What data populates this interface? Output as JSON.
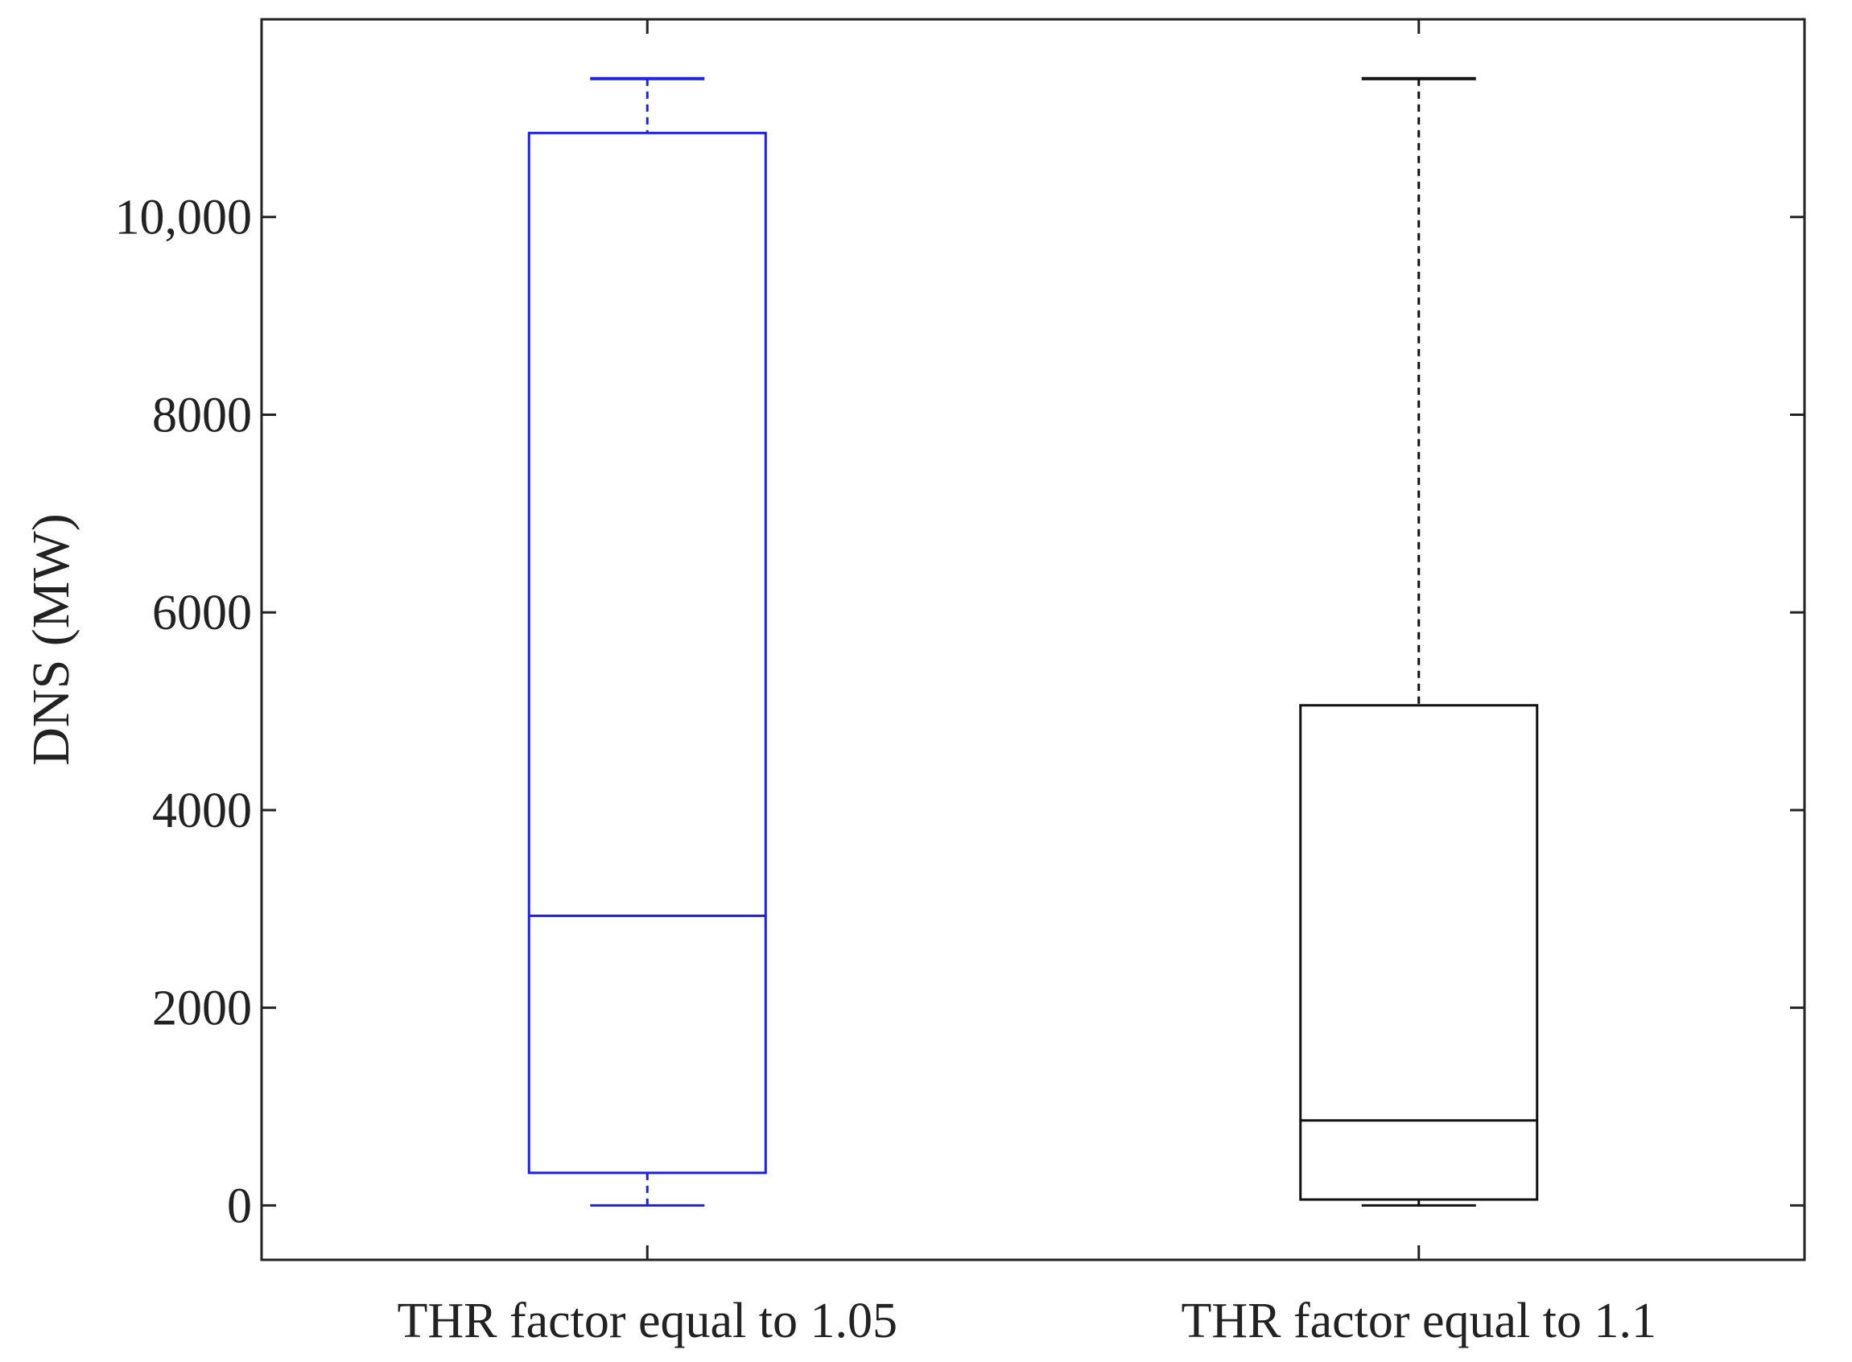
{
  "chart_data": {
    "type": "box",
    "ylabel": "DNS (MW)",
    "ylim": [
      -550,
      12000
    ],
    "yticks": [
      0,
      2000,
      4000,
      6000,
      8000,
      10000
    ],
    "ytick_labels": [
      "0",
      "2000",
      "4000",
      "6000",
      "8000",
      "10,000"
    ],
    "categories": [
      "THR factor equal to 1.05",
      "THR factor equal to 1.1"
    ],
    "boxes": [
      {
        "category": "THR factor equal to 1.05",
        "min": 0,
        "q1": 330,
        "median": 2930,
        "q3": 10850,
        "max": 11400,
        "color": "#1f1fe6"
      },
      {
        "category": "THR factor equal to 1.1",
        "min": 0,
        "q1": 60,
        "median": 860,
        "q3": 5060,
        "max": 11400,
        "color": "#111111"
      }
    ],
    "grid": false,
    "legend": "none"
  }
}
